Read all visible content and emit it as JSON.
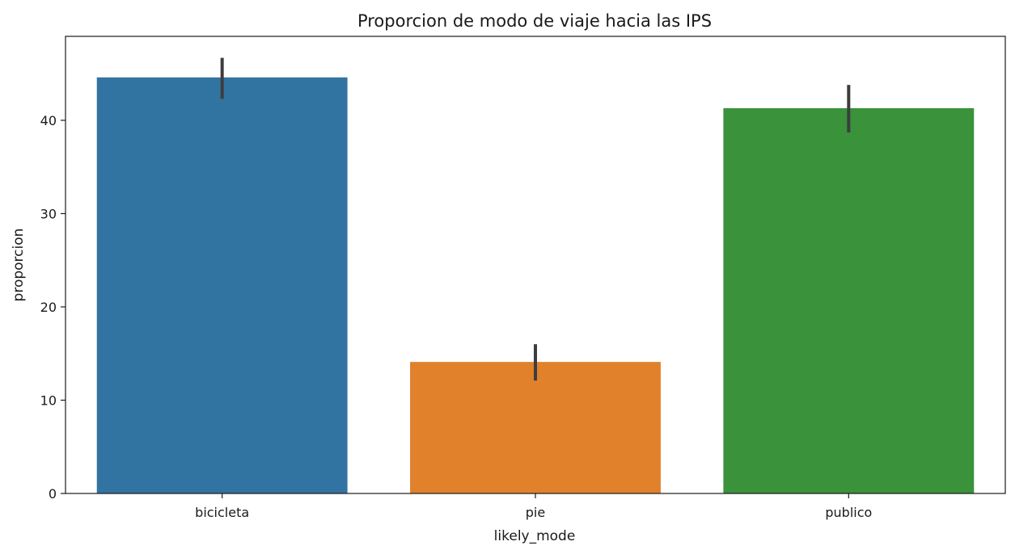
{
  "chart_data": {
    "type": "bar",
    "title": "Proporcion de modo de viaje hacia las IPS",
    "xlabel": "likely_mode",
    "ylabel": "proporcion",
    "categories": [
      "bicicleta",
      "pie",
      "publico"
    ],
    "values": [
      44.6,
      14.1,
      41.3
    ],
    "error_low": [
      42.3,
      12.1,
      38.7
    ],
    "error_high": [
      46.7,
      16.0,
      43.8
    ],
    "colors": [
      "#3274a1",
      "#e1812c",
      "#3a923a"
    ],
    "error_color": "#3d3d3d",
    "ylim": [
      0,
      49
    ],
    "yticks": [
      0,
      10,
      20,
      30,
      40
    ],
    "grid": false,
    "legend": "none"
  }
}
